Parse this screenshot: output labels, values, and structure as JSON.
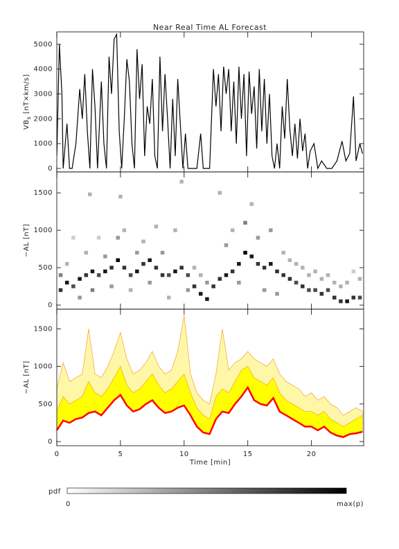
{
  "chart_data": [
    {
      "type": "line",
      "title": "Near Real Time AL Forecast",
      "ylabel": {
        "main": "VB",
        "sub": "s",
        "unit": " [nT×km/s]"
      },
      "color": "#000000",
      "x": [
        0,
        0.2,
        0.4,
        0.5,
        0.8,
        1,
        1.2,
        1.5,
        1.8,
        2,
        2.2,
        2.4,
        2.6,
        2.8,
        3,
        3.2,
        3.5,
        3.7,
        3.9,
        4.1,
        4.3,
        4.5,
        4.7,
        4.9,
        5.1,
        5.3,
        5.5,
        5.7,
        5.9,
        6.1,
        6.3,
        6.5,
        6.7,
        6.9,
        7.1,
        7.3,
        7.5,
        7.7,
        7.9,
        8.1,
        8.3,
        8.5,
        8.7,
        8.9,
        9.1,
        9.3,
        9.5,
        9.7,
        9.9,
        10.1,
        10.3,
        10.6,
        11,
        11.3,
        11.5,
        12,
        12.3,
        12.5,
        12.7,
        12.9,
        13.1,
        13.3,
        13.5,
        13.7,
        13.9,
        14.1,
        14.3,
        14.5,
        14.7,
        14.9,
        15.1,
        15.3,
        15.5,
        15.7,
        15.9,
        16.1,
        16.3,
        16.5,
        16.7,
        16.9,
        17.1,
        17.3,
        17.5,
        17.7,
        17.9,
        18.1,
        18.3,
        18.5,
        18.7,
        18.9,
        19.1,
        19.3,
        19.5,
        19.7,
        19.9,
        20.2,
        20.5,
        20.8,
        21.2,
        21.6,
        22,
        22.4,
        22.7,
        23,
        23.3,
        23.5,
        23.8,
        24
      ],
      "values": [
        500,
        5000,
        3000,
        0,
        1800,
        0,
        0,
        1000,
        3200,
        2000,
        3800,
        1500,
        0,
        4000,
        2500,
        0,
        3500,
        1000,
        0,
        4500,
        3000,
        5200,
        5400,
        1500,
        0,
        2000,
        4400,
        3500,
        1000,
        0,
        4800,
        2800,
        4200,
        500,
        2500,
        1800,
        3600,
        500,
        0,
        4500,
        1500,
        3800,
        2000,
        0,
        2800,
        500,
        3600,
        1800,
        0,
        1400,
        0,
        0,
        0,
        1400,
        0,
        0,
        4000,
        2500,
        3800,
        1500,
        4100,
        3000,
        4000,
        1500,
        3500,
        1000,
        4100,
        2000,
        3800,
        500,
        3900,
        2200,
        3300,
        800,
        4000,
        1500,
        3600,
        1000,
        3000,
        500,
        0,
        1000,
        0,
        2500,
        1200,
        3600,
        1600,
        500,
        1800,
        400,
        2000,
        700,
        1400,
        0,
        700,
        1000,
        0,
        300,
        0,
        0,
        300,
        1100,
        300,
        600,
        2900,
        300,
        1000,
        600
      ],
      "xlim": [
        0,
        24.1
      ],
      "xticks": [
        0,
        5,
        10,
        15,
        20
      ],
      "ylim": [
        -140,
        5500
      ],
      "yticks": [
        0,
        1000,
        2000,
        3000,
        4000,
        5000
      ]
    },
    {
      "type": "heatmap",
      "ylabel": {
        "main": "−AL",
        "unit": " [nT]"
      },
      "color": "#000000",
      "cell_size": [
        0.3,
        50
      ],
      "x": [
        0.3,
        0.3,
        0.8,
        0.8,
        1.3,
        1.3,
        1.8,
        1.8,
        2.3,
        2.3,
        2.6,
        2.8,
        2.8,
        3.3,
        3.3,
        3.8,
        3.8,
        4.3,
        4.3,
        4.8,
        4.8,
        5.0,
        5.3,
        5.3,
        5.8,
        5.8,
        6.3,
        6.3,
        6.8,
        6.8,
        7.3,
        7.3,
        7.8,
        7.8,
        8.3,
        8.3,
        8.8,
        8.8,
        9.3,
        9.3,
        9.8,
        9.8,
        10.3,
        10.3,
        10.8,
        10.8,
        11.3,
        11.3,
        11.8,
        11.8,
        12.3,
        12.8,
        12.8,
        13.3,
        13.3,
        13.8,
        13.8,
        14.3,
        14.3,
        14.8,
        14.8,
        15.3,
        15.3,
        15.8,
        15.8,
        16.3,
        16.3,
        16.8,
        16.8,
        17.3,
        17.3,
        17.8,
        17.8,
        18.3,
        18.3,
        18.8,
        18.8,
        19.3,
        19.3,
        19.8,
        19.8,
        20.3,
        20.3,
        20.8,
        20.8,
        21.3,
        21.3,
        21.8,
        21.8,
        22.3,
        22.3,
        22.8,
        22.8,
        23.3,
        23.3,
        23.8,
        23.8
      ],
      "y": [
        200,
        400,
        300,
        550,
        250,
        900,
        350,
        100,
        400,
        700,
        1480,
        450,
        200,
        400,
        900,
        450,
        650,
        500,
        250,
        600,
        900,
        1450,
        500,
        1000,
        400,
        200,
        450,
        700,
        550,
        850,
        600,
        300,
        500,
        1050,
        400,
        700,
        400,
        100,
        450,
        1000,
        500,
        1650,
        400,
        200,
        250,
        500,
        150,
        400,
        80,
        300,
        250,
        350,
        1500,
        400,
        800,
        450,
        1000,
        550,
        300,
        700,
        1100,
        650,
        1350,
        550,
        900,
        500,
        200,
        550,
        1000,
        450,
        150,
        400,
        700,
        350,
        600,
        300,
        550,
        250,
        500,
        200,
        400,
        200,
        450,
        150,
        350,
        200,
        400,
        100,
        300,
        50,
        250,
        50,
        300,
        100,
        450,
        100,
        350
      ],
      "p": [
        0.8,
        0.5,
        0.9,
        0.3,
        0.7,
        0.2,
        0.9,
        0.4,
        0.8,
        0.3,
        0.3,
        0.9,
        0.5,
        0.7,
        0.2,
        0.9,
        0.4,
        0.8,
        0.4,
        1,
        0.4,
        0.3,
        0.8,
        0.3,
        0.7,
        0.3,
        0.9,
        0.4,
        0.8,
        0.3,
        0.9,
        0.4,
        0.8,
        0.3,
        0.8,
        0.4,
        0.7,
        0.3,
        0.9,
        0.3,
        0.8,
        0.3,
        0.7,
        0.4,
        0.8,
        0.3,
        0.9,
        0.3,
        0.9,
        0.4,
        0.8,
        0.8,
        0.3,
        0.9,
        0.4,
        0.8,
        0.3,
        0.9,
        0.4,
        1,
        0.5,
        0.9,
        0.3,
        0.8,
        0.4,
        0.8,
        0.4,
        0.9,
        0.4,
        0.8,
        0.4,
        0.8,
        0.3,
        0.8,
        0.3,
        0.7,
        0.3,
        0.8,
        0.3,
        0.7,
        0.3,
        0.7,
        0.3,
        0.8,
        0.3,
        0.7,
        0.3,
        0.8,
        0.3,
        0.8,
        0.3,
        0.9,
        0.3,
        0.8,
        0.2,
        0.7,
        0.3
      ],
      "xlim": [
        0,
        24.1
      ],
      "xticks": [
        0,
        5,
        10,
        15,
        20
      ],
      "ylim": [
        -55,
        1780
      ],
      "yticks": [
        0,
        500,
        1000,
        1500
      ]
    },
    {
      "type": "band",
      "ylabel": {
        "main": "−AL",
        "unit": " [nT]"
      },
      "xlabel": "Time [min]",
      "x": [
        0,
        0.5,
        1,
        1.5,
        2,
        2.5,
        3,
        3.5,
        4,
        4.5,
        5,
        5.5,
        6,
        6.5,
        7,
        7.5,
        8,
        8.5,
        9,
        9.5,
        10,
        10.5,
        11,
        11.5,
        12,
        12.5,
        13,
        13.5,
        14,
        14.5,
        15,
        15.5,
        16,
        16.5,
        17,
        17.5,
        18,
        18.5,
        19,
        19.5,
        20,
        20.5,
        21,
        21.5,
        22,
        22.5,
        23,
        23.5,
        24
      ],
      "series": [
        {
          "color": "#fff7a8",
          "values": [
            700,
            1050,
            800,
            850,
            900,
            1500,
            900,
            850,
            1000,
            1200,
            1450,
            1100,
            900,
            950,
            1050,
            1200,
            1000,
            900,
            950,
            1200,
            1680,
            900,
            650,
            550,
            500,
            900,
            1500,
            950,
            1050,
            1100,
            1200,
            1100,
            1050,
            1000,
            1100,
            900,
            800,
            750,
            700,
            600,
            650,
            550,
            600,
            500,
            450,
            350,
            400,
            450,
            400
          ]
        },
        {
          "color": "#ffff00",
          "values": [
            400,
            600,
            500,
            550,
            600,
            800,
            650,
            600,
            700,
            850,
            1000,
            750,
            650,
            700,
            800,
            900,
            750,
            650,
            700,
            800,
            900,
            650,
            450,
            350,
            300,
            600,
            700,
            650,
            800,
            950,
            1000,
            850,
            800,
            750,
            850,
            650,
            550,
            500,
            450,
            400,
            400,
            350,
            400,
            300,
            250,
            200,
            250,
            300,
            350
          ]
        },
        {
          "color": "#ff0000",
          "values": [
            150,
            280,
            250,
            300,
            320,
            380,
            400,
            350,
            450,
            550,
            620,
            480,
            400,
            430,
            500,
            550,
            450,
            380,
            400,
            450,
            480,
            350,
            200,
            120,
            100,
            300,
            400,
            380,
            500,
            600,
            720,
            550,
            500,
            480,
            580,
            400,
            350,
            300,
            250,
            200,
            200,
            150,
            200,
            120,
            80,
            60,
            100,
            110,
            130
          ]
        }
      ],
      "xlim": [
        0,
        24.1
      ],
      "xticks": [
        0,
        5,
        10,
        15,
        20
      ],
      "ylim": [
        -55,
        1762
      ],
      "yticks": [
        0,
        500,
        1000,
        1500
      ]
    }
  ],
  "colorbar": {
    "label": "pdf",
    "min_label": "0",
    "max_label": "max(p)"
  }
}
